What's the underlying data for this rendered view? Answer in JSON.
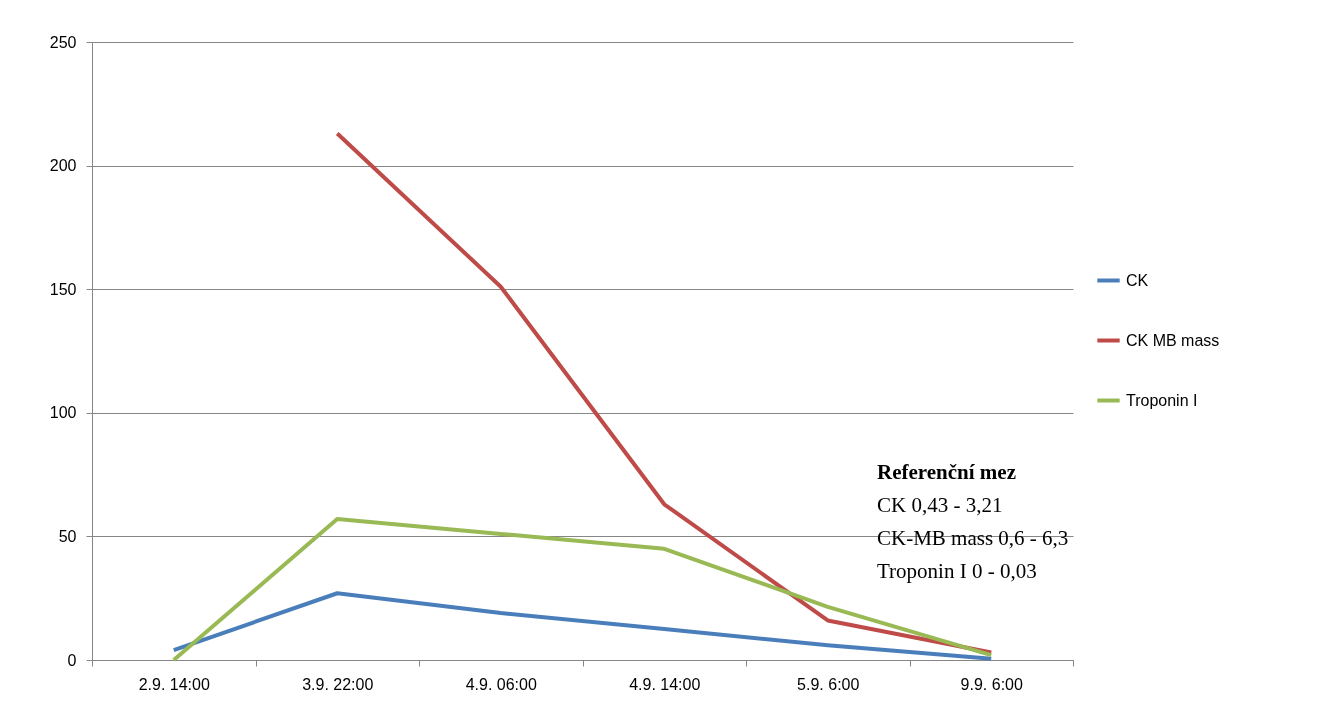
{
  "chart_data": {
    "type": "line",
    "categories": [
      "2.9. 14:00",
      "3.9. 22:00",
      "4.9. 06:00",
      "4.9. 14:00",
      "5.9. 6:00",
      "9.9. 6:00"
    ],
    "series": [
      {
        "name": "CK",
        "color": "#4a7ebb",
        "values": [
          4,
          27,
          19,
          12.5,
          6,
          0.5
        ]
      },
      {
        "name": "CK MB mass",
        "color": "#be4b48",
        "values": [
          null,
          213,
          151,
          63,
          16,
          3
        ]
      },
      {
        "name": "Troponin I",
        "color": "#98b954",
        "values": [
          0,
          57,
          51,
          45,
          21.5,
          2
        ]
      }
    ],
    "ylim": [
      0,
      250
    ],
    "yticks": [
      0,
      50,
      100,
      150,
      200,
      250
    ],
    "grid": "y",
    "legend": "right",
    "marker": "none",
    "line_style": "solid",
    "annotations": [
      "Referenční mez",
      "CK 0,43 - 3,21",
      "CK-MB mass 0,6 - 6,3",
      "Troponin I 0 - 0,03"
    ]
  }
}
